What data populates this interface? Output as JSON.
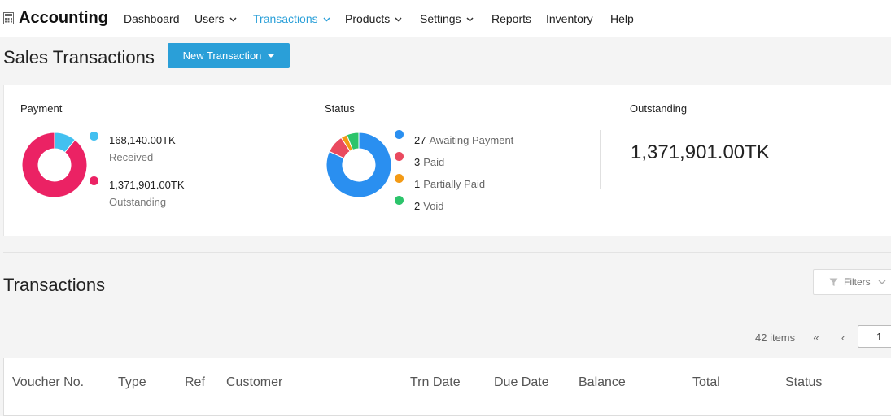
{
  "nav": {
    "brand": "Accounting",
    "items": [
      {
        "label": "Dashboard",
        "dropdown": false,
        "active": false
      },
      {
        "label": "Users",
        "dropdown": true,
        "active": false
      },
      {
        "label": "Transactions",
        "dropdown": true,
        "active": true
      },
      {
        "label": "Products",
        "dropdown": true,
        "active": false
      },
      {
        "label": "Settings",
        "dropdown": true,
        "active": false
      },
      {
        "label": "Reports",
        "dropdown": false,
        "active": false
      },
      {
        "label": "Inventory",
        "dropdown": false,
        "active": false
      },
      {
        "label": "Help",
        "dropdown": false,
        "active": false
      }
    ]
  },
  "page": {
    "title": "Sales Transactions",
    "new_button": "New Transaction"
  },
  "summary": {
    "payment": {
      "label": "Payment",
      "received_value": "168,140.00TK",
      "received_label": "Received",
      "outstanding_value": "1,371,901.00TK",
      "outstanding_label": "Outstanding",
      "chart": [
        {
          "name": "Received",
          "value": 168140,
          "color": "#42c0f0"
        },
        {
          "name": "Outstanding",
          "value": 1371901,
          "color": "#eb2264"
        }
      ]
    },
    "status": {
      "label": "Status",
      "items": [
        {
          "count": "27",
          "label": "Awaiting Payment",
          "color": "#2a8ff0",
          "value": 27
        },
        {
          "count": "3",
          "label": "Paid",
          "color": "#ea4a5f",
          "value": 3
        },
        {
          "count": "1",
          "label": "Partially Paid",
          "color": "#f39a15",
          "value": 1
        },
        {
          "count": "2",
          "label": "Void",
          "color": "#2cc46b",
          "value": 2
        }
      ]
    },
    "outstanding": {
      "label": "Outstanding",
      "amount": "1,371,901.00TK"
    }
  },
  "transactions": {
    "title": "Transactions",
    "filters": "Filters",
    "items_count": "42 items",
    "first_page": "«",
    "prev_page": "‹",
    "page_input": "1",
    "columns": [
      "Voucher No.",
      "Type",
      "Ref",
      "Customer",
      "Trn Date",
      "Due Date",
      "Balance",
      "Total",
      "Status"
    ]
  },
  "icons": {
    "brand": "calculator-icon",
    "chevron": "chevron-down-icon",
    "filter": "filter-icon"
  }
}
